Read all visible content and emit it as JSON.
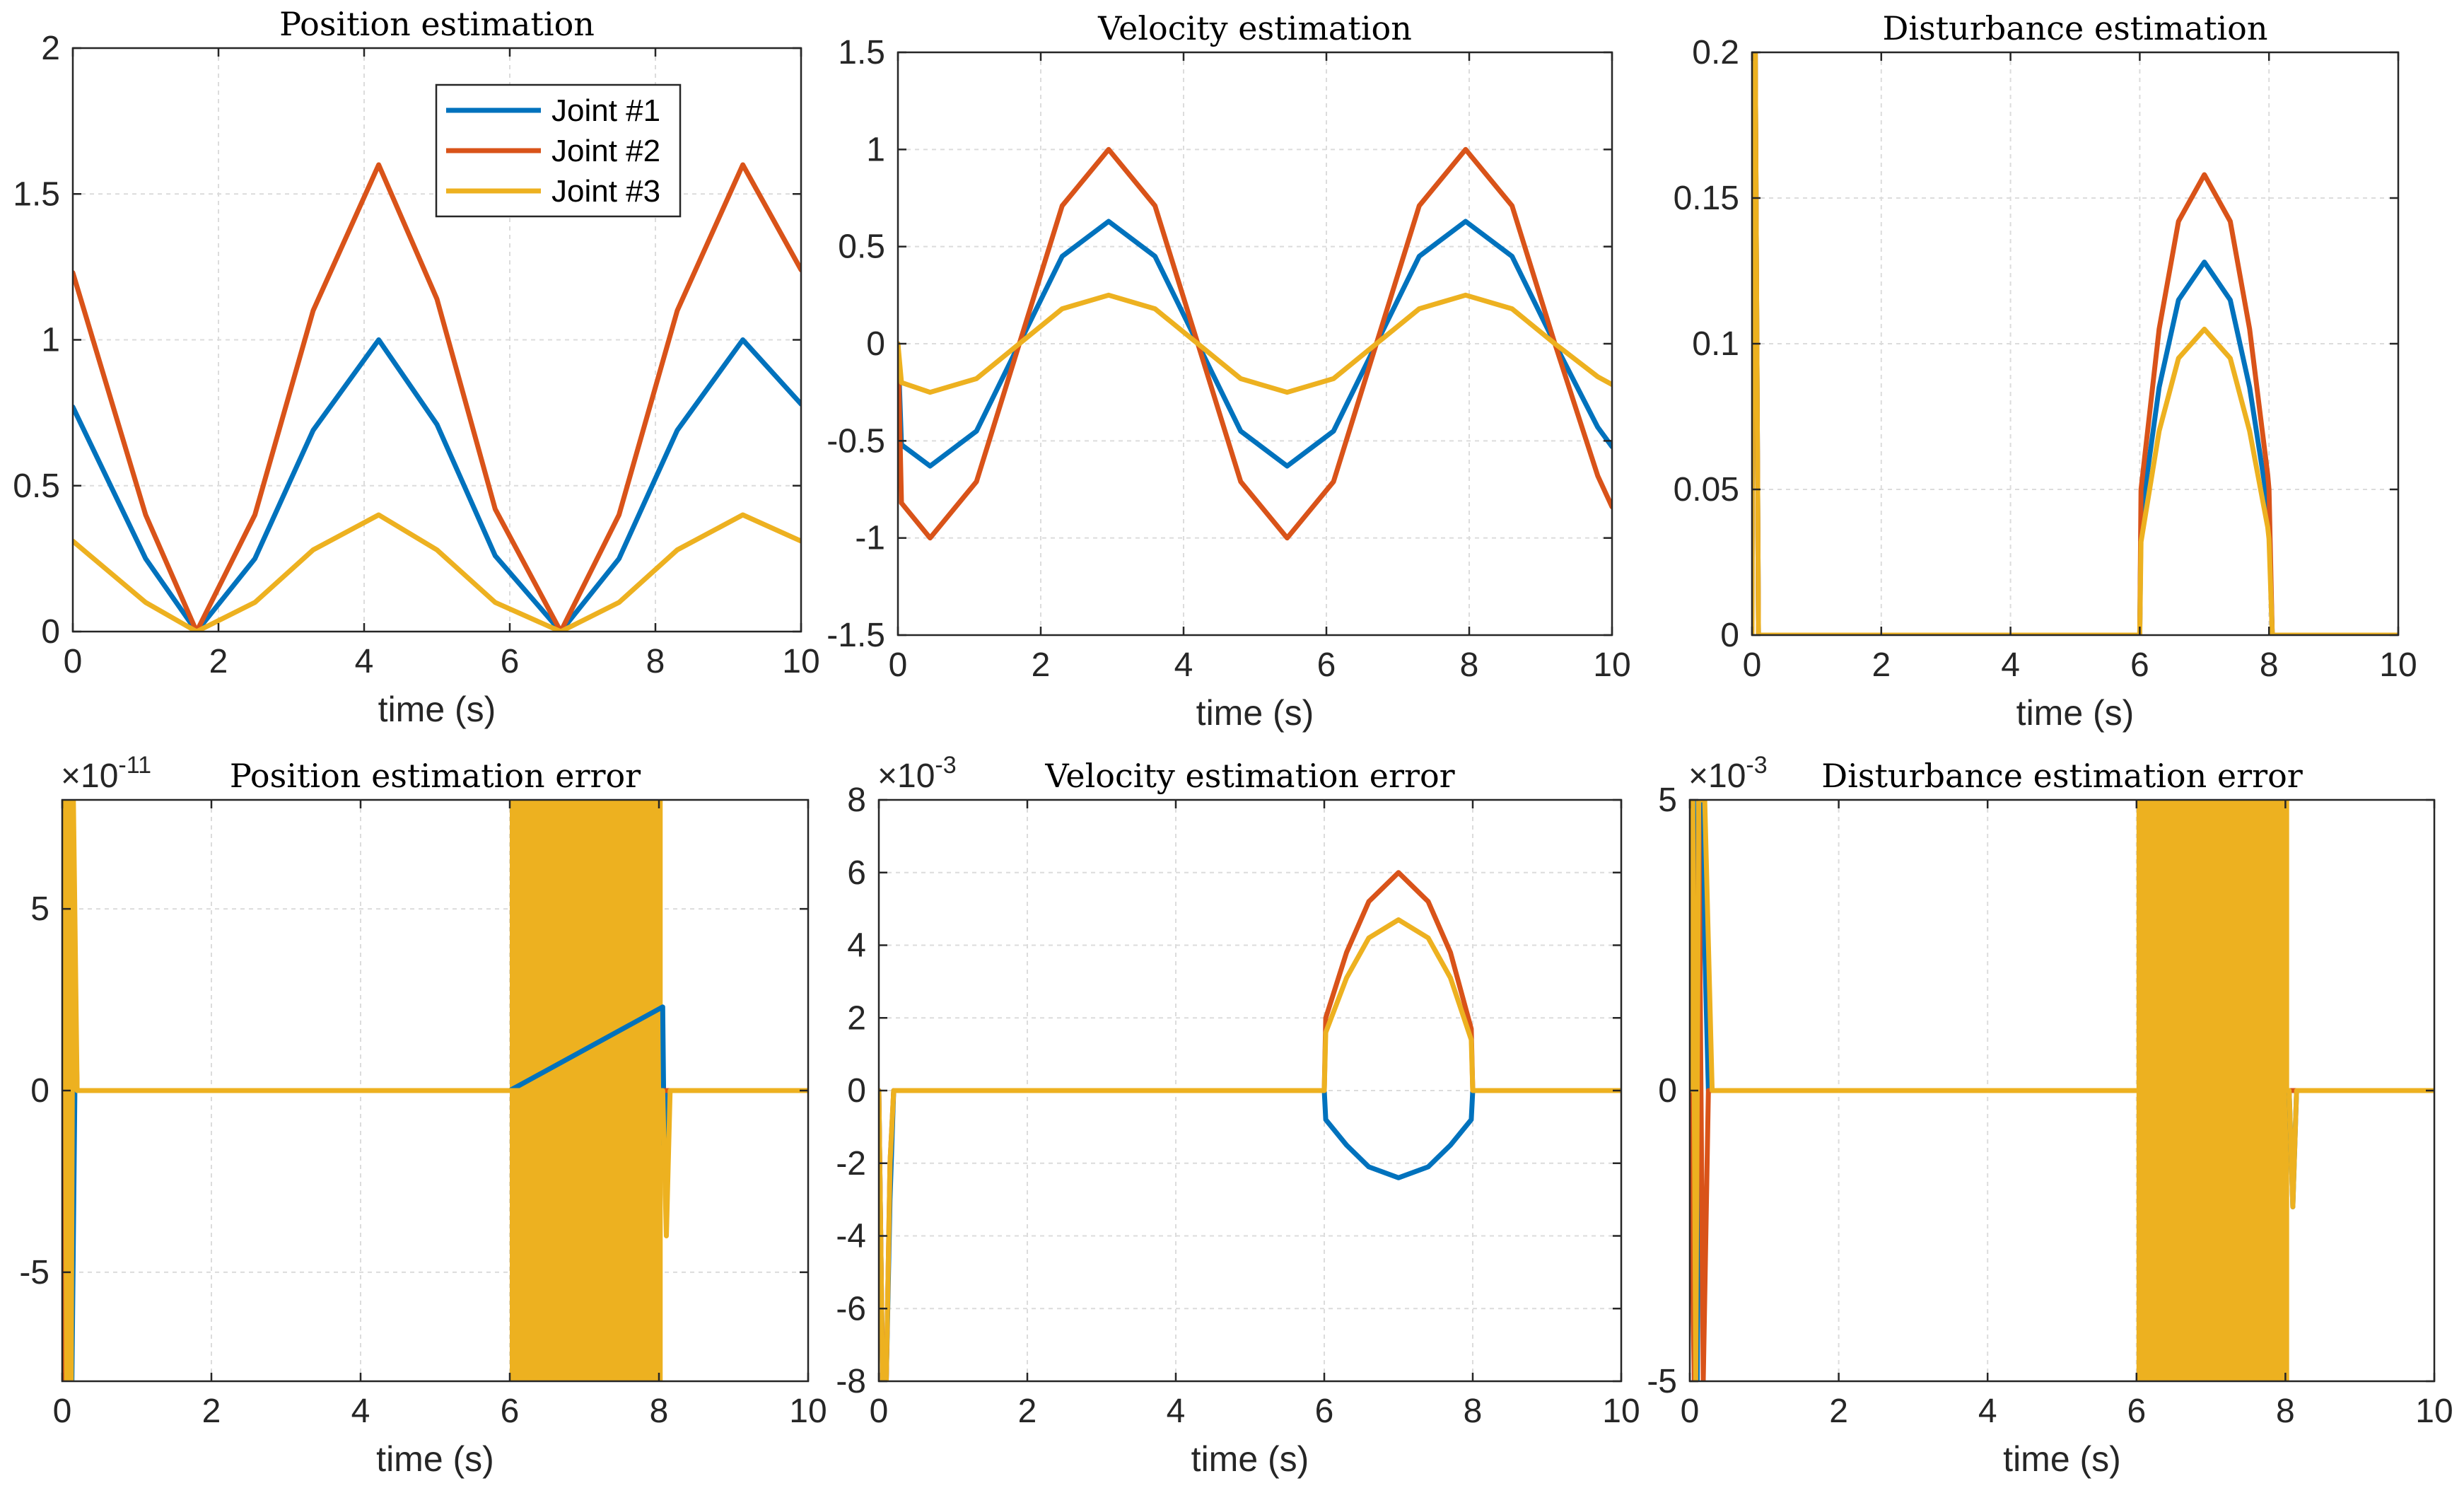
{
  "colors": {
    "joint1": "#0072BD",
    "joint2": "#D95319",
    "joint3": "#EDB120"
  },
  "chart_data": [
    {
      "type": "line",
      "title": "Position estimation",
      "xlabel": "time (s)",
      "ylabel": "",
      "xlim": [
        0,
        10
      ],
      "ylim": [
        0,
        2
      ],
      "xticks": [
        "0",
        "2",
        "4",
        "6",
        "8",
        "10"
      ],
      "yticks": [
        "0",
        "0.5",
        "1",
        "1.5",
        "2"
      ],
      "grid": true,
      "legend_position": "top-right",
      "legend": [
        "Joint #1",
        "Joint #2",
        "Joint #3"
      ],
      "series": [
        {
          "name": "Joint #1",
          "color": "#0072BD",
          "x": [
            0,
            1,
            1.7,
            2.5,
            3.3,
            4.2,
            5,
            5.8,
            6.7,
            7.5,
            8.3,
            9.2,
            10
          ],
          "y": [
            0.77,
            0.25,
            0.0,
            0.25,
            0.69,
            1.0,
            0.71,
            0.26,
            0.0,
            0.25,
            0.69,
            1.0,
            0.78
          ]
        },
        {
          "name": "Joint #2",
          "color": "#D95319",
          "x": [
            0,
            1,
            1.7,
            2.5,
            3.3,
            4.2,
            5,
            5.8,
            6.7,
            7.5,
            8.3,
            9.2,
            10
          ],
          "y": [
            1.23,
            0.4,
            0.0,
            0.4,
            1.1,
            1.6,
            1.14,
            0.42,
            0.0,
            0.4,
            1.1,
            1.6,
            1.24
          ]
        },
        {
          "name": "Joint #3",
          "color": "#EDB120",
          "x": [
            0,
            1,
            1.7,
            2.5,
            3.3,
            4.2,
            5,
            5.8,
            6.7,
            7.5,
            8.3,
            9.2,
            10
          ],
          "y": [
            0.31,
            0.1,
            0.0,
            0.1,
            0.28,
            0.4,
            0.28,
            0.1,
            0.0,
            0.1,
            0.28,
            0.4,
            0.31
          ]
        }
      ]
    },
    {
      "type": "line",
      "title": "Velocity estimation",
      "xlabel": "time (s)",
      "ylabel": "",
      "xlim": [
        0,
        10
      ],
      "ylim": [
        -1.5,
        1.5
      ],
      "xticks": [
        "0",
        "2",
        "4",
        "6",
        "8",
        "10"
      ],
      "yticks": [
        "-1.5",
        "-1",
        "-0.5",
        "0",
        "0.5",
        "1",
        "1.5"
      ],
      "grid": true,
      "series": [
        {
          "name": "Joint #1",
          "color": "#0072BD",
          "x": [
            0,
            0.05,
            0.45,
            1.1,
            1.7,
            2.3,
            2.95,
            3.6,
            4.2,
            4.8,
            5.45,
            6.1,
            6.7,
            7.3,
            7.95,
            8.6,
            9.2,
            9.8,
            10
          ],
          "y": [
            0,
            -0.52,
            -0.63,
            -0.45,
            0.0,
            0.45,
            0.63,
            0.45,
            0.0,
            -0.45,
            -0.63,
            -0.45,
            0.0,
            0.45,
            0.63,
            0.45,
            0.0,
            -0.43,
            -0.53
          ]
        },
        {
          "name": "Joint #2",
          "color": "#D95319",
          "x": [
            0,
            0.05,
            0.45,
            1.1,
            1.7,
            2.3,
            2.95,
            3.6,
            4.2,
            4.8,
            5.45,
            6.1,
            6.7,
            7.3,
            7.95,
            8.6,
            9.2,
            9.8,
            10
          ],
          "y": [
            0,
            -0.82,
            -1.0,
            -0.71,
            0.0,
            0.71,
            1.0,
            0.71,
            0.0,
            -0.71,
            -1.0,
            -0.71,
            0.0,
            0.71,
            1.0,
            0.71,
            0.0,
            -0.68,
            -0.84
          ]
        },
        {
          "name": "Joint #3",
          "color": "#EDB120",
          "x": [
            0,
            0.05,
            0.45,
            1.1,
            1.7,
            2.3,
            2.95,
            3.6,
            4.2,
            4.8,
            5.45,
            6.1,
            6.7,
            7.3,
            7.95,
            8.6,
            9.2,
            9.8,
            10
          ],
          "y": [
            0,
            -0.2,
            -0.25,
            -0.18,
            0.0,
            0.18,
            0.25,
            0.18,
            0.0,
            -0.18,
            -0.25,
            -0.18,
            0.0,
            0.18,
            0.25,
            0.18,
            0.0,
            -0.17,
            -0.21
          ]
        }
      ]
    },
    {
      "type": "line",
      "title": "Disturbance estimation",
      "xlabel": "time (s)",
      "ylabel": "",
      "xlim": [
        0,
        10
      ],
      "ylim": [
        0,
        0.2
      ],
      "xticks": [
        "0",
        "2",
        "4",
        "6",
        "8",
        "10"
      ],
      "yticks": [
        "0",
        "0.05",
        "0.1",
        "0.15",
        "0.2"
      ],
      "grid": true,
      "series": [
        {
          "name": "Joint #1",
          "color": "#0072BD",
          "x": [
            0,
            0.01,
            0.05,
            0.1,
            6.0,
            6.02,
            6.3,
            6.6,
            7.0,
            7.4,
            7.7,
            7.98,
            8.0,
            8.05,
            10
          ],
          "y": [
            0,
            0.2,
            0.2,
            0,
            0,
            0.04,
            0.085,
            0.115,
            0.128,
            0.115,
            0.085,
            0.045,
            0.04,
            0,
            0
          ]
        },
        {
          "name": "Joint #2",
          "color": "#D95319",
          "x": [
            0,
            0.01,
            0.05,
            0.1,
            6.0,
            6.02,
            6.3,
            6.6,
            7.0,
            7.4,
            7.7,
            7.98,
            8.0,
            8.05,
            10
          ],
          "y": [
            0,
            0.2,
            0.2,
            0,
            0,
            0.05,
            0.105,
            0.142,
            0.158,
            0.142,
            0.105,
            0.055,
            0.05,
            0,
            0
          ]
        },
        {
          "name": "Joint #3",
          "color": "#EDB120",
          "x": [
            0,
            0.01,
            0.05,
            0.1,
            6.0,
            6.02,
            6.3,
            6.6,
            7.0,
            7.4,
            7.7,
            7.98,
            8.0,
            8.05,
            10
          ],
          "y": [
            0,
            0.2,
            0.2,
            0,
            0,
            0.032,
            0.07,
            0.095,
            0.105,
            0.095,
            0.07,
            0.037,
            0.033,
            0,
            0
          ]
        }
      ]
    },
    {
      "type": "line",
      "title": "Position estimation error",
      "xlabel": "time (s)",
      "ylabel": "",
      "xlim": [
        0,
        10
      ],
      "ylim": [
        -8e-11,
        8e-11
      ],
      "exponent_prefix": "×10",
      "exponent_power": "-11",
      "xticks": [
        "0",
        "2",
        "4",
        "6",
        "8",
        "10"
      ],
      "yticks": [
        "-5",
        "0",
        "5"
      ],
      "grid": true,
      "series": [
        {
          "name": "Joint #1",
          "color": "#0072BD",
          "x": [
            0,
            0.03,
            0.06,
            0.09,
            0.13,
            0.17,
            0.25,
            6.0,
            8.05,
            8.07,
            8.1,
            8.15,
            10
          ],
          "y": [
            0,
            8e-11,
            -8e-11,
            8e-11,
            -8e-11,
            0,
            0,
            0,
            2.3e-11,
            -1.5e-11,
            0,
            0,
            0
          ]
        },
        {
          "name": "Joint #2",
          "color": "#D95319",
          "x": [
            0,
            0.03,
            0.06,
            0.09,
            0.12,
            0.15,
            0.2,
            10
          ],
          "y": [
            0,
            -8e-11,
            8e-11,
            -8e-11,
            8e-11,
            5e-11,
            0,
            0
          ]
        },
        {
          "name": "Joint #3",
          "color": "#EDB120",
          "x": [
            0,
            0.03,
            0.06,
            0.09,
            0.12,
            0.15,
            0.2,
            6.0,
            8.05,
            8.1,
            8.15,
            10
          ],
          "y": [
            0,
            8e-11,
            -8e-11,
            8e-11,
            -8e-11,
            8e-11,
            0,
            0,
            0,
            -4e-11,
            0,
            0
          ]
        }
      ],
      "filled_bands": [
        {
          "series": "Joint #3",
          "x_start": 6.0,
          "x_end": 8.05,
          "y_min": -8e-11,
          "y_max": 8e-11
        }
      ]
    },
    {
      "type": "line",
      "title": "Velocity estimation error",
      "xlabel": "time (s)",
      "ylabel": "",
      "xlim": [
        0,
        10
      ],
      "ylim": [
        -0.008,
        0.008
      ],
      "exponent_prefix": "×10",
      "exponent_power": "-3",
      "xticks": [
        "0",
        "2",
        "4",
        "6",
        "8",
        "10"
      ],
      "yticks": [
        "-8",
        "-6",
        "-4",
        "-2",
        "0",
        "2",
        "4",
        "6",
        "8"
      ],
      "grid": true,
      "series": [
        {
          "name": "Joint #1",
          "color": "#0072BD",
          "x": [
            0,
            0.05,
            0.1,
            0.15,
            0.2,
            6.0,
            6.02,
            6.3,
            6.6,
            7.0,
            7.4,
            7.7,
            7.98,
            8.0,
            10
          ],
          "y": [
            0,
            -0.008,
            -0.008,
            -0.003,
            0,
            0,
            -0.0008,
            -0.0015,
            -0.0021,
            -0.0024,
            -0.0021,
            -0.0015,
            -0.0008,
            0,
            0
          ]
        },
        {
          "name": "Joint #2",
          "color": "#D95319",
          "x": [
            0,
            0.05,
            0.1,
            0.15,
            0.2,
            6.0,
            6.02,
            6.3,
            6.6,
            7.0,
            7.4,
            7.7,
            7.98,
            8.0,
            10
          ],
          "y": [
            0,
            -0.008,
            -0.008,
            -0.002,
            0,
            0,
            0.002,
            0.0038,
            0.0052,
            0.006,
            0.0052,
            0.0038,
            0.0017,
            0,
            0
          ]
        },
        {
          "name": "Joint #3",
          "color": "#EDB120",
          "x": [
            0,
            0.05,
            0.1,
            0.15,
            0.2,
            6.0,
            6.02,
            6.3,
            6.6,
            7.0,
            7.4,
            7.7,
            7.98,
            8.0,
            10
          ],
          "y": [
            0,
            -0.008,
            -0.008,
            -0.002,
            0,
            0,
            0.0016,
            0.0031,
            0.0042,
            0.0047,
            0.0042,
            0.0031,
            0.0014,
            0,
            0
          ]
        }
      ]
    },
    {
      "type": "line",
      "title": "Disturbance estimation error",
      "xlabel": "time (s)",
      "ylabel": "",
      "xlim": [
        0,
        10
      ],
      "ylim": [
        -0.005,
        0.005
      ],
      "exponent_prefix": "×10",
      "exponent_power": "-3",
      "xticks": [
        "0",
        "2",
        "4",
        "6",
        "8",
        "10"
      ],
      "yticks": [
        "-5",
        "0",
        "5"
      ],
      "grid": true,
      "series": [
        {
          "name": "Joint #1",
          "color": "#0072BD",
          "x": [
            0,
            0.05,
            0.1,
            0.15,
            0.25,
            8.05,
            8.1,
            8.15,
            10
          ],
          "y": [
            0,
            0.005,
            -0.005,
            0.005,
            0,
            0,
            -0.002,
            0,
            0
          ]
        },
        {
          "name": "Joint #2",
          "color": "#D95319",
          "x": [
            0,
            0.06,
            0.12,
            0.18,
            0.25,
            10
          ],
          "y": [
            0,
            -0.005,
            0.005,
            -0.005,
            0,
            0
          ]
        },
        {
          "name": "Joint #3",
          "color": "#EDB120",
          "x": [
            0,
            0.04,
            0.08,
            0.12,
            0.2,
            0.3,
            6.0,
            8.05,
            8.1,
            8.15,
            10
          ],
          "y": [
            0,
            0.005,
            -0.005,
            0.005,
            0.005,
            0,
            0,
            0,
            -0.002,
            0,
            0
          ]
        }
      ],
      "filled_bands": [
        {
          "series": "Joint #3",
          "x_start": 6.0,
          "x_end": 8.05,
          "y_min": -0.005,
          "y_max": 0.005
        }
      ]
    }
  ]
}
